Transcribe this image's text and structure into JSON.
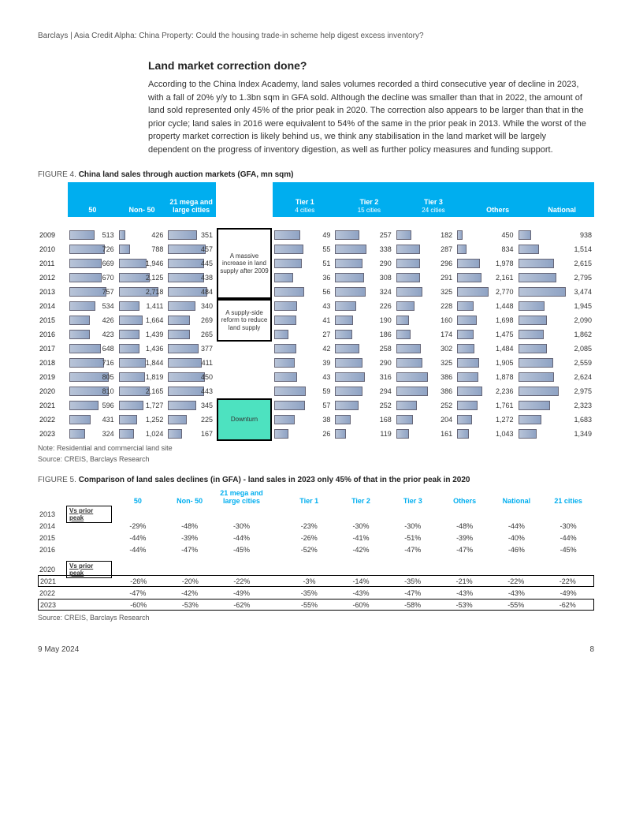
{
  "header": "Barclays | Asia Credit Alpha: China Property: Could the housing trade-in scheme help digest excess inventory?",
  "section_title": "Land market correction done?",
  "paragraph": "According to the China Index Academy, land sales volumes recorded a third consecutive year of decline in 2023, with a fall of 20% y/y to 1.3bn sqm in GFA sold.  Although the decline was smaller than that in 2022, the amount of land sold represented only 45% of the prior peak in 2020. The correction also appears to be larger than that in the prior cycle; land sales in 2016 were equivalent to 54% of the same in the prior peak in 2013. While the worst of the property market correction is likely behind us, we think any stabilisation in the land market will be largely dependent on the progress of inventory digestion, as well as further policy measures and funding support.",
  "fig4": {
    "num": "FIGURE 4.",
    "title": "China land sales through auction markets (GFA, mn sqm)",
    "cols_g1": [
      "50",
      "Non- 50",
      "21 mega and large cities"
    ],
    "cols_g2": [
      {
        "t": "Tier 1",
        "s": "4 cities"
      },
      {
        "t": "Tier 2",
        "s": "15 cities"
      },
      {
        "t": "Tier 3",
        "s": "24 cities"
      },
      {
        "t": "Others",
        "s": ""
      },
      {
        "t": "National",
        "s": ""
      }
    ],
    "max_g1": [
      810,
      2718,
      484
    ],
    "max_g2": [
      59,
      338,
      386,
      2770,
      3474
    ],
    "rows": [
      {
        "y": "2009",
        "bg": "y",
        "g1": [
          513,
          426,
          351
        ],
        "g2": [
          49,
          257,
          182,
          450,
          938
        ]
      },
      {
        "y": "2010",
        "bg": "y",
        "g1": [
          726,
          788,
          457
        ],
        "g2": [
          55,
          338,
          287,
          834,
          1514
        ]
      },
      {
        "y": "2011",
        "bg": "y",
        "g1": [
          669,
          1946,
          445
        ],
        "g2": [
          51,
          290,
          296,
          1978,
          2615
        ]
      },
      {
        "y": "2012",
        "bg": "y",
        "g1": [
          670,
          2125,
          438
        ],
        "g2": [
          36,
          308,
          291,
          2161,
          2795
        ]
      },
      {
        "y": "2013",
        "bg": "y",
        "g1": [
          757,
          2718,
          484
        ],
        "g2": [
          56,
          324,
          325,
          2770,
          3474
        ]
      },
      {
        "y": "2014",
        "bg": "p",
        "g1": [
          534,
          1411,
          340
        ],
        "g2": [
          43,
          226,
          228,
          1448,
          1945
        ]
      },
      {
        "y": "2015",
        "bg": "p",
        "g1": [
          426,
          1664,
          269
        ],
        "g2": [
          41,
          190,
          160,
          1698,
          2090
        ]
      },
      {
        "y": "2016",
        "bg": "p",
        "g1": [
          423,
          1439,
          265
        ],
        "g2": [
          27,
          186,
          174,
          1475,
          1862
        ]
      },
      {
        "y": "2017",
        "bg": "b",
        "g1": [
          648,
          1436,
          377
        ],
        "g2": [
          42,
          258,
          302,
          1484,
          2085
        ]
      },
      {
        "y": "2018",
        "bg": "b",
        "g1": [
          716,
          1844,
          411
        ],
        "g2": [
          39,
          290,
          325,
          1905,
          2559
        ]
      },
      {
        "y": "2019",
        "bg": "b",
        "g1": [
          805,
          1819,
          450
        ],
        "g2": [
          43,
          316,
          386,
          1878,
          2624
        ]
      },
      {
        "y": "2020",
        "bg": "b",
        "g1": [
          810,
          2165,
          443
        ],
        "g2": [
          59,
          294,
          386,
          2236,
          2975
        ]
      },
      {
        "y": "2021",
        "bg": "g",
        "g1": [
          596,
          1727,
          345
        ],
        "g2": [
          57,
          252,
          252,
          1761,
          2323
        ]
      },
      {
        "y": "2022",
        "bg": "g",
        "g1": [
          431,
          1252,
          225
        ],
        "g2": [
          38,
          168,
          204,
          1272,
          1683
        ]
      },
      {
        "y": "2023",
        "bg": "g",
        "g1": [
          324,
          1024,
          167
        ],
        "g2": [
          26,
          119,
          161,
          1043,
          1349
        ]
      }
    ],
    "annot1": "A massive increase in land supply after 2009",
    "annot2": "A supply-side reform to reduce land supply",
    "annot3": "Downturn",
    "note1": "Note: Residential and commercial land site",
    "note2": "Source: CREIS, Barclays Research"
  },
  "fig5": {
    "num": "FIGURE 5.",
    "title": "Comparison of land sales declines (in GFA) - land sales in 2023 only 45% of that in the prior peak in 2020",
    "cols_l": [
      "50",
      "Non- 50",
      "21 mega and large cities"
    ],
    "cols_r": [
      "Tier 1",
      "Tier 2",
      "Tier 3",
      "Others",
      "National",
      "21 cities"
    ],
    "vp": "Vs prior peak",
    "r1": [
      {
        "y": "2014",
        "l": [
          "-29%",
          "-48%",
          "-30%"
        ],
        "r": [
          "-23%",
          "-30%",
          "-30%",
          "-48%",
          "-44%",
          "-30%"
        ]
      },
      {
        "y": "2015",
        "l": [
          "-44%",
          "-39%",
          "-44%"
        ],
        "r": [
          "-26%",
          "-41%",
          "-51%",
          "-39%",
          "-40%",
          "-44%"
        ]
      },
      {
        "y": "2016",
        "l": [
          "-44%",
          "-47%",
          "-45%"
        ],
        "r": [
          "-52%",
          "-42%",
          "-47%",
          "-47%",
          "-46%",
          "-45%"
        ]
      }
    ],
    "r2": [
      {
        "y": "2021",
        "l": [
          "-26%",
          "-20%",
          "-22%"
        ],
        "r": [
          "-3%",
          "-14%",
          "-35%",
          "-21%",
          "-22%",
          "-22%"
        ],
        "box": true
      },
      {
        "y": "2022",
        "l": [
          "-47%",
          "-42%",
          "-49%"
        ],
        "r": [
          "-35%",
          "-43%",
          "-47%",
          "-43%",
          "-43%",
          "-49%"
        ]
      },
      {
        "y": "2023",
        "l": [
          "-60%",
          "-53%",
          "-62%"
        ],
        "r": [
          "-55%",
          "-60%",
          "-58%",
          "-53%",
          "-55%",
          "-62%"
        ],
        "box": true
      }
    ],
    "sec1": "2013",
    "sec2": "2020",
    "src": "Source: CREIS, Barclays Research"
  },
  "footer": {
    "date": "9 May 2024",
    "page": "8"
  }
}
